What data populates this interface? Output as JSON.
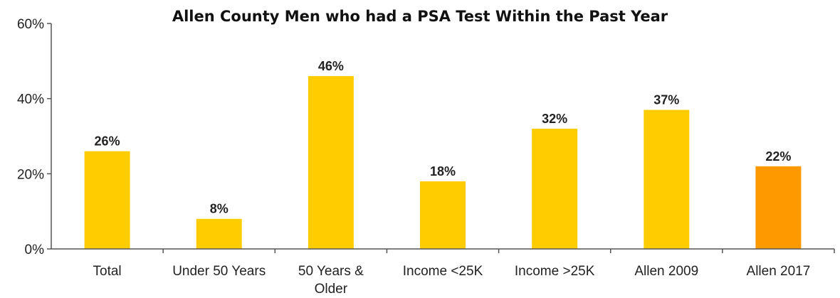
{
  "chart_data": {
    "type": "bar",
    "title": "Allen County Men who had a PSA Test Within the Past Year",
    "xlabel": "",
    "ylabel": "",
    "categories": [
      [
        "Total"
      ],
      [
        "Under 50 Years"
      ],
      [
        "50 Years &",
        "Older"
      ],
      [
        "Income <25K"
      ],
      [
        "Income >25K"
      ],
      [
        "Allen 2009"
      ],
      [
        "Allen 2017"
      ]
    ],
    "values": [
      26,
      8,
      46,
      18,
      32,
      37,
      22
    ],
    "data_labels": [
      "26%",
      "8%",
      "46%",
      "18%",
      "32%",
      "37%",
      "22%"
    ],
    "ylim": [
      0,
      60
    ],
    "yticks": [
      0,
      20,
      40,
      60
    ],
    "ytick_labels": [
      "0%",
      "20%",
      "40%",
      "60%"
    ],
    "grid": false,
    "legend": "none",
    "colors": {
      "bar": "#FFCC00",
      "highlight": "#FF9900",
      "text": "#222222",
      "axis": "#555555"
    },
    "highlight_index": 6
  }
}
